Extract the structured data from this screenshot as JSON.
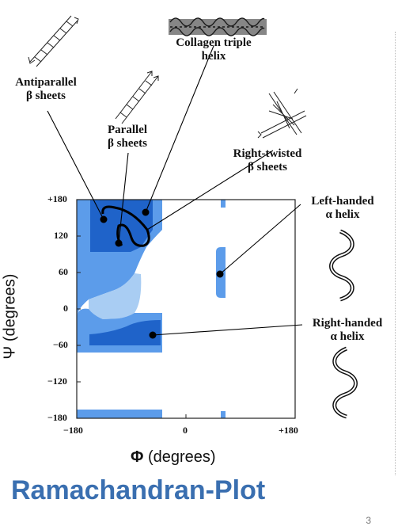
{
  "title": "Ramachandran-Plot",
  "page_number": "3",
  "x_axis": {
    "symbol": "Φ",
    "unit": "(degrees)",
    "ticks": [
      "−180",
      "0",
      "+180"
    ]
  },
  "y_axis": {
    "symbol": "Ψ",
    "unit": "(degrees)",
    "ticks": [
      "+180",
      "120",
      "60",
      "0",
      "−60",
      "−120",
      "−180"
    ]
  },
  "labels": {
    "collagen": {
      "line1": "Collagen triple",
      "line2": "helix"
    },
    "antiparallel": {
      "line1": "Antiparallel",
      "line2": "β sheets"
    },
    "parallel": {
      "line1": "Parallel",
      "line2": "β sheets"
    },
    "right_twisted": {
      "line1": "Right-twisted",
      "line2": "β sheets"
    },
    "left_handed": {
      "line1": "Left-handed",
      "line2": "α helix"
    },
    "right_handed": {
      "line1": "Right-handed",
      "line2": "α helix"
    }
  },
  "colors": {
    "region_dark": "#1f63c9",
    "region_mid": "#5c9cea",
    "region_light": "#a9cdf3",
    "title": "#3a6fb0"
  },
  "icons": [
    "ladder-antiparallel-icon",
    "ladder-parallel-icon",
    "collagen-helix-icon",
    "twisted-sheet-icon",
    "left-helix-icon",
    "right-helix-icon"
  ]
}
